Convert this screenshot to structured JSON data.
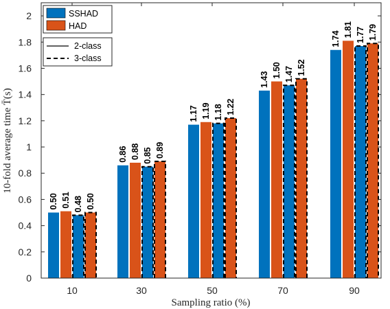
{
  "chart_data": {
    "type": "bar",
    "xlabel": "Sampling ratio (%)",
    "ylabel": "10-fold average time T̄(s)",
    "categories": [
      "10",
      "30",
      "50",
      "70",
      "90"
    ],
    "ylim": [
      0,
      2.1
    ],
    "yticks": [
      "0",
      "0.2",
      "0.4",
      "0.6",
      "0.8",
      "1",
      "1.2",
      "1.4",
      "1.6",
      "1.8",
      "2"
    ],
    "grid": false,
    "legend_position": "top-left",
    "series": [
      {
        "name": "SSHAD",
        "color": "#0072BD",
        "class": "2-class",
        "values": [
          0.5,
          0.86,
          1.17,
          1.43,
          1.74
        ]
      },
      {
        "name": "HAD",
        "color": "#D95319",
        "class": "2-class",
        "values": [
          0.51,
          0.88,
          1.19,
          1.5,
          1.81
        ]
      },
      {
        "name": "SSHAD",
        "color": "#0072BD",
        "class": "3-class",
        "values": [
          0.48,
          0.85,
          1.18,
          1.47,
          1.77
        ]
      },
      {
        "name": "HAD",
        "color": "#D95319",
        "class": "3-class",
        "values": [
          0.5,
          0.89,
          1.22,
          1.52,
          1.79
        ]
      }
    ],
    "data_labels": [
      [
        "0.50",
        "0.51",
        "0.48",
        "0.50"
      ],
      [
        "0.86",
        "0.88",
        "0.85",
        "0.89"
      ],
      [
        "1.17",
        "1.19",
        "1.18",
        "1.22"
      ],
      [
        "1.43",
        "1.50",
        "1.47",
        "1.52"
      ],
      [
        "1.74",
        "1.81",
        "1.77",
        "1.79"
      ]
    ],
    "legend": {
      "colors": [
        {
          "label": "SSHAD",
          "color": "#0072BD"
        },
        {
          "label": "HAD",
          "color": "#D95319"
        }
      ],
      "lines": [
        {
          "label": "2-class",
          "style": "solid"
        },
        {
          "label": "3-class",
          "style": "dashed"
        }
      ]
    }
  }
}
